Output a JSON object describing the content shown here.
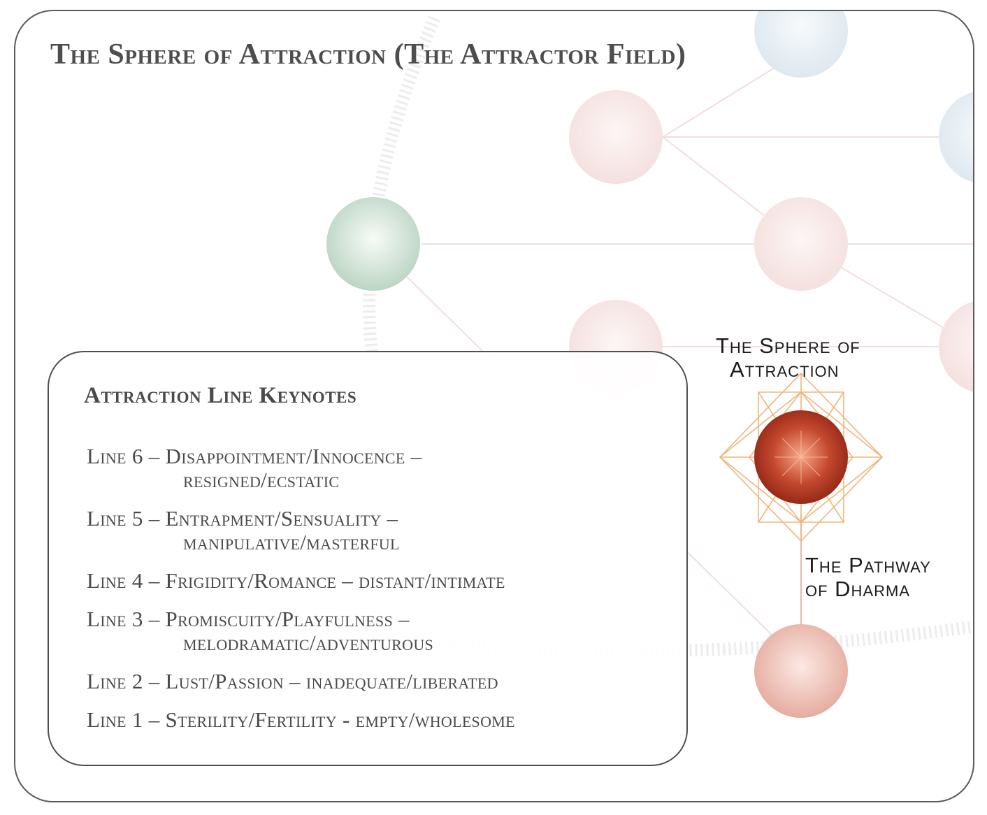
{
  "title": "The Sphere of Attraction (The Attractor Field)",
  "labels": {
    "sphere_line1": "The Sphere of",
    "sphere_line2": "Attraction",
    "pathway_line1": "The Pathway",
    "pathway_line2": "of Dharma"
  },
  "keynotes": {
    "heading": "Attraction Line Keynotes",
    "lines": [
      {
        "head": "Line 6 – Disappointment/Innocence –",
        "tail": "resigned/ecstatic"
      },
      {
        "head": "Line 5 – Entrapment/Sensuality –",
        "tail": "manipulative/masterful"
      },
      {
        "head": "Line 4 – Frigidity/Romance – distant/intimate",
        "tail": ""
      },
      {
        "head": "Line 3 – Promiscuity/Playfulness –",
        "tail": "melodramatic/adventurous"
      },
      {
        "head": "Line 2 – Lust/Passion – inadequate/liberated",
        "tail": ""
      },
      {
        "head": "Line 1 – Sterility/Fertility - empty/wholesome",
        "tail": ""
      }
    ]
  },
  "colors": {
    "frame": "#5b5b5b",
    "title_text": "#4d4d4d",
    "sphere_attraction": "#a8321e",
    "sphere_green": "#c9ddd0",
    "sphere_pink": "#f6e4e3",
    "sphere_blue": "#e3ebf1",
    "geometry_lines": "#f0b57a"
  }
}
